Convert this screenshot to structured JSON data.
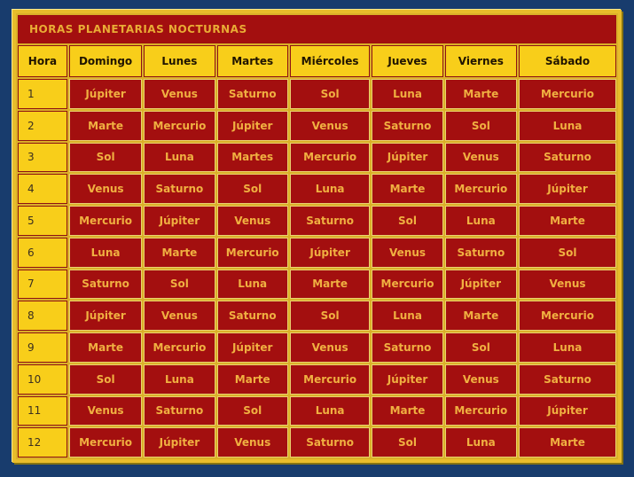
{
  "panel": {
    "title": "HORAS PLANETARIAS NOCTURNAS"
  },
  "table": {
    "columns": [
      "Hora",
      "Domingo",
      "Lunes",
      "Martes",
      "Miércoles",
      "Jueves",
      "Viernes",
      "Sábado"
    ],
    "rows": [
      {
        "hora": "1",
        "planets": [
          "Júpiter",
          "Venus",
          "Saturno",
          "Sol",
          "Luna",
          "Marte",
          "Mercurio"
        ]
      },
      {
        "hora": "2",
        "planets": [
          "Marte",
          "Mercurio",
          "Júpiter",
          "Venus",
          "Saturno",
          "Sol",
          "Luna"
        ]
      },
      {
        "hora": "3",
        "planets": [
          "Sol",
          "Luna",
          "Martes",
          "Mercurio",
          "Júpiter",
          "Venus",
          "Saturno"
        ]
      },
      {
        "hora": "4",
        "planets": [
          "Venus",
          "Saturno",
          "Sol",
          "Luna",
          "Marte",
          "Mercurio",
          "Júpiter"
        ]
      },
      {
        "hora": "5",
        "planets": [
          "Mercurio",
          "Júpiter",
          "Venus",
          "Saturno",
          "Sol",
          "Luna",
          "Marte"
        ]
      },
      {
        "hora": "6",
        "planets": [
          "Luna",
          "Marte",
          "Mercurio",
          "Júpiter",
          "Venus",
          "Saturno",
          "Sol"
        ]
      },
      {
        "hora": "7",
        "planets": [
          "Saturno",
          "Sol",
          "Luna",
          "Marte",
          "Mercurio",
          "Júpiter",
          "Venus"
        ]
      },
      {
        "hora": "8",
        "planets": [
          "Júpiter",
          "Venus",
          "Saturno",
          "Sol",
          "Luna",
          "Marte",
          "Mercurio"
        ]
      },
      {
        "hora": "9",
        "planets": [
          "Marte",
          "Mercurio",
          "Júpiter",
          "Venus",
          "Saturno",
          "Sol",
          "Luna"
        ]
      },
      {
        "hora": "10",
        "planets": [
          "Sol",
          "Luna",
          "Marte",
          "Mercurio",
          "Júpiter",
          "Venus",
          "Saturno"
        ]
      },
      {
        "hora": "11",
        "planets": [
          "Venus",
          "Saturno",
          "Sol",
          "Luna",
          "Marte",
          "Mercurio",
          "Júpiter"
        ]
      },
      {
        "hora": "12",
        "planets": [
          "Mercurio",
          "Júpiter",
          "Venus",
          "Saturno",
          "Sol",
          "Luna",
          "Marte"
        ]
      }
    ]
  },
  "colors": {
    "page_background": "#183C6D",
    "panel_border_gold": "#E8BD2B",
    "panel_bevel_light": "#F9E98F",
    "panel_bevel_dark": "#867413",
    "cell_spacing_gold": "#DBB028",
    "yellow_cell": "#F8CE1A",
    "dark_red_cell": "#A30F0F",
    "planet_text": "#F0B041",
    "title_text": "#E9AC35",
    "header_text": "#201400"
  }
}
